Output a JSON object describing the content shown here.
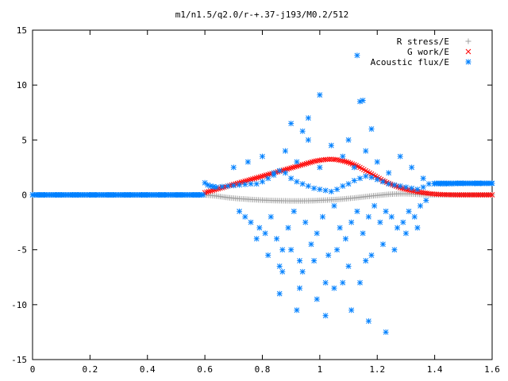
{
  "chart_data": {
    "type": "scatter",
    "title": "m1/n1.5/q2.0/r-+.37-j193/M0.2/512",
    "xlabel": "",
    "ylabel": "",
    "xlim": [
      0,
      1.6
    ],
    "ylim": [
      -15,
      15
    ],
    "x_ticks": [
      0,
      0.2,
      0.4,
      0.6,
      0.8,
      1,
      1.2,
      1.4,
      1.6
    ],
    "y_ticks": [
      -15,
      -10,
      -5,
      0,
      5,
      10,
      15
    ],
    "x_tick_labels": [
      "0",
      "0.2",
      "0.4",
      "0.6",
      "0.8",
      "1",
      "1.2",
      "1.4",
      "1.6"
    ],
    "y_tick_labels": [
      "-15",
      "-10",
      "-5",
      "0",
      "5",
      "10",
      "15"
    ],
    "grid": false,
    "legend_position": "top-right",
    "series": [
      {
        "name": "R stress/E",
        "marker": "plus",
        "color": "#a0a0a0",
        "x": [
          0.6,
          0.62,
          0.64,
          0.66,
          0.68,
          0.7,
          0.72,
          0.74,
          0.76,
          0.78,
          0.8,
          0.82,
          0.84,
          0.86,
          0.88,
          0.9,
          0.92,
          0.94,
          0.96,
          0.98,
          1.0,
          1.02,
          1.04,
          1.06,
          1.08,
          1.1,
          1.12,
          1.14,
          1.16,
          1.18,
          1.2,
          1.22,
          1.24,
          1.26,
          1.28,
          1.3,
          1.32,
          1.34,
          1.36,
          1.38,
          1.4,
          1.42,
          1.44,
          1.46,
          1.48,
          1.5,
          1.52,
          1.54,
          1.56,
          1.58,
          1.6
        ],
        "y": [
          0.0,
          -0.05,
          -0.1,
          -0.18,
          -0.25,
          -0.3,
          -0.35,
          -0.38,
          -0.42,
          -0.45,
          -0.48,
          -0.5,
          -0.52,
          -0.53,
          -0.54,
          -0.55,
          -0.55,
          -0.55,
          -0.54,
          -0.53,
          -0.5,
          -0.48,
          -0.45,
          -0.42,
          -0.38,
          -0.33,
          -0.28,
          -0.22,
          -0.16,
          -0.1,
          -0.05,
          0.0,
          0.05,
          0.08,
          0.1,
          0.1,
          0.08,
          0.05,
          0.03,
          0.01,
          0.0,
          0.0,
          0.0,
          0.0,
          0.0,
          0.0,
          0.0,
          0.0,
          0.0,
          0.0,
          0.0
        ]
      },
      {
        "name": "G work/E",
        "marker": "cross",
        "color": "#ff0000",
        "x": [
          0.6,
          0.62,
          0.64,
          0.66,
          0.68,
          0.7,
          0.72,
          0.74,
          0.76,
          0.78,
          0.8,
          0.82,
          0.84,
          0.86,
          0.88,
          0.9,
          0.92,
          0.94,
          0.96,
          0.98,
          1.0,
          1.02,
          1.04,
          1.06,
          1.08,
          1.1,
          1.12,
          1.14,
          1.16,
          1.18,
          1.2,
          1.22,
          1.24,
          1.26,
          1.28,
          1.3,
          1.32,
          1.34,
          1.36,
          1.38,
          1.4,
          1.42,
          1.44,
          1.46,
          1.48,
          1.5,
          1.52,
          1.54,
          1.56,
          1.58,
          1.6
        ],
        "y": [
          0.2,
          0.35,
          0.5,
          0.65,
          0.8,
          0.95,
          1.1,
          1.25,
          1.4,
          1.55,
          1.7,
          1.85,
          2.0,
          2.15,
          2.3,
          2.45,
          2.6,
          2.75,
          2.9,
          3.05,
          3.15,
          3.22,
          3.25,
          3.2,
          3.1,
          2.95,
          2.75,
          2.5,
          2.2,
          1.9,
          1.6,
          1.3,
          1.05,
          0.85,
          0.65,
          0.5,
          0.38,
          0.28,
          0.2,
          0.12,
          0.07,
          0.04,
          0.02,
          0.01,
          0.0,
          0.0,
          0.0,
          0.0,
          0.0,
          0.0,
          0.0
        ]
      },
      {
        "name": "Acoustic flux/E",
        "marker": "star",
        "color": "#0080ff",
        "x": [
          0.0,
          0.02,
          0.04,
          0.06,
          0.08,
          0.1,
          0.12,
          0.14,
          0.16,
          0.18,
          0.2,
          0.22,
          0.24,
          0.26,
          0.28,
          0.3,
          0.32,
          0.34,
          0.36,
          0.38,
          0.4,
          0.42,
          0.44,
          0.46,
          0.48,
          0.5,
          0.52,
          0.54,
          0.56,
          0.58,
          0.6,
          0.61,
          0.62,
          0.63,
          0.64,
          0.66,
          0.68,
          0.7,
          0.72,
          0.74,
          0.76,
          0.78,
          0.8,
          0.82,
          0.84,
          0.86,
          0.88,
          0.9,
          0.92,
          0.94,
          0.96,
          0.98,
          1.0,
          1.02,
          1.04,
          1.06,
          1.08,
          1.1,
          1.12,
          1.14,
          1.16,
          1.18,
          1.2,
          1.22,
          1.24,
          1.26,
          1.28,
          1.3,
          1.32,
          1.34,
          1.36,
          1.38,
          1.4,
          1.42,
          1.44,
          1.46,
          1.48,
          1.5,
          1.52,
          1.54,
          1.56,
          1.58,
          1.6,
          0.72,
          0.74,
          0.76,
          0.79,
          0.81,
          0.83,
          0.85,
          0.87,
          0.89,
          0.91,
          0.93,
          0.95,
          0.97,
          0.99,
          1.01,
          1.03,
          1.05,
          1.07,
          1.09,
          1.11,
          1.13,
          1.15,
          1.17,
          1.19,
          1.21,
          1.23,
          1.25,
          1.27,
          1.29,
          1.31,
          1.33,
          1.35,
          1.37,
          0.7,
          0.75,
          0.8,
          0.84,
          0.88,
          0.92,
          0.96,
          1.0,
          1.04,
          1.08,
          1.12,
          1.16,
          1.2,
          1.24,
          1.28,
          1.32,
          1.36,
          0.78,
          0.82,
          0.86,
          0.9,
          0.94,
          0.98,
          1.02,
          1.06,
          1.1,
          1.14,
          1.18,
          1.22,
          1.26,
          1.3,
          1.34,
          0.87,
          0.93,
          0.99,
          1.05,
          1.11,
          1.17,
          1.23,
          0.9,
          0.96,
          1.1,
          1.14,
          1.18,
          0.86,
          0.92,
          1.02,
          1.08,
          1.16
        ],
        "y": [
          0.0,
          0.0,
          0.0,
          0.0,
          0.0,
          0.0,
          0.0,
          0.0,
          0.0,
          0.0,
          0.0,
          0.0,
          0.0,
          0.0,
          0.0,
          0.0,
          0.0,
          0.0,
          0.0,
          0.0,
          0.0,
          0.0,
          0.0,
          0.0,
          0.0,
          0.0,
          0.0,
          0.0,
          0.0,
          0.0,
          1.1,
          0.9,
          0.8,
          0.75,
          0.7,
          0.75,
          0.8,
          0.85,
          0.9,
          0.95,
          1.0,
          1.0,
          1.2,
          1.5,
          1.8,
          2.2,
          2.0,
          1.5,
          1.2,
          1.0,
          0.8,
          0.6,
          0.5,
          0.4,
          0.3,
          0.5,
          0.8,
          1.0,
          1.3,
          1.5,
          1.7,
          1.6,
          1.4,
          1.2,
          1.0,
          0.9,
          0.8,
          0.7,
          0.6,
          0.5,
          0.7,
          1.0,
          1.0,
          1.0,
          1.0,
          1.0,
          1.05,
          1.05,
          1.05,
          1.05,
          1.05,
          1.05,
          1.05,
          -1.5,
          -2.0,
          -2.5,
          -3.0,
          -3.5,
          -2.0,
          -4.0,
          -5.0,
          -3.0,
          -1.5,
          -6.0,
          -2.5,
          -4.5,
          -3.5,
          -2.0,
          -5.5,
          -1.0,
          -3.0,
          -4.0,
          -2.5,
          -1.5,
          -3.5,
          -2.0,
          -1.0,
          -2.5,
          -1.5,
          -2.0,
          -3.0,
          -2.5,
          -1.5,
          -2.0,
          -1.0,
          -0.5,
          2.5,
          3.0,
          3.5,
          2.0,
          4.0,
          3.0,
          5.0,
          2.5,
          4.5,
          3.5,
          2.5,
          4.0,
          3.0,
          2.0,
          3.5,
          2.5,
          1.5,
          -4.0,
          -5.5,
          -6.5,
          -5.0,
          -7.0,
          -6.0,
          -8.0,
          -5.0,
          -6.5,
          -8.0,
          -5.5,
          -4.5,
          -5.0,
          -3.5,
          -3.0,
          -7.0,
          -8.5,
          -9.5,
          -8.5,
          -10.5,
          -11.5,
          -12.5,
          6.5,
          7.0,
          5.0,
          8.5,
          6.0,
          -9.0,
          -10.5,
          -11.0,
          -8.0,
          -6.0
        ]
      }
    ],
    "extra_points": {
      "acoustic_outliers": [
        [
          1.0,
          9.1
        ],
        [
          1.13,
          12.7
        ],
        [
          1.15,
          8.6
        ],
        [
          0.94,
          5.8
        ]
      ]
    }
  }
}
